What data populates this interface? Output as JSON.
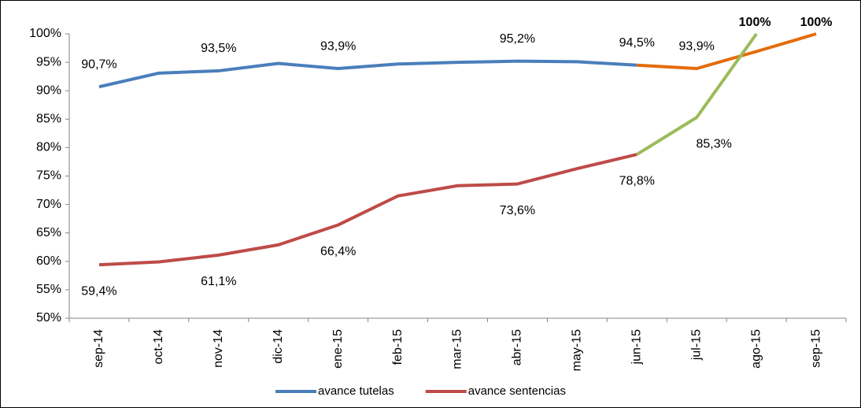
{
  "chart_data": {
    "type": "line",
    "categories": [
      "sep-14",
      "oct-14",
      "nov-14",
      "dic-14",
      "ene-15",
      "feb-15",
      "mar-15",
      "abr-15",
      "may-15",
      "jun-15",
      "jul-15",
      "ago-15",
      "sep-15"
    ],
    "series": [
      {
        "name": "avance tutelas",
        "color": "#4a7ebb",
        "values": [
          90.7,
          93.1,
          93.5,
          94.8,
          93.9,
          94.7,
          95.0,
          95.2,
          95.1,
          94.5,
          null,
          null,
          null
        ],
        "value_labels": [
          "90,7%",
          null,
          "93,5%",
          null,
          "93,9%",
          null,
          null,
          "95,2%",
          null,
          "94,5%",
          null,
          null,
          null
        ]
      },
      {
        "name": "avance sentencias",
        "color": "#be4b48",
        "values": [
          59.4,
          59.9,
          61.1,
          62.9,
          66.4,
          71.5,
          73.3,
          73.6,
          76.3,
          78.8,
          null,
          null,
          null
        ],
        "value_labels": [
          "59,4%",
          null,
          "61,1%",
          null,
          "66,4%",
          null,
          null,
          "73,6%",
          null,
          "78,8%",
          null,
          null,
          null
        ]
      },
      {
        "color": "#e46c0a",
        "values": [
          null,
          null,
          null,
          null,
          null,
          null,
          null,
          null,
          null,
          94.5,
          93.9,
          96.9,
          100
        ],
        "value_labels": [
          null,
          null,
          null,
          null,
          null,
          null,
          null,
          null,
          null,
          null,
          "93,9%",
          null,
          "100%"
        ]
      },
      {
        "color": "#9bbb59",
        "values": [
          null,
          null,
          null,
          null,
          null,
          null,
          null,
          null,
          null,
          78.8,
          85.3,
          100,
          null
        ],
        "value_labels": [
          null,
          null,
          null,
          null,
          null,
          null,
          null,
          null,
          null,
          null,
          "85,3%",
          "100%",
          null
        ]
      }
    ],
    "ylim": [
      50,
      100
    ],
    "yticks": [
      {
        "value": 50,
        "label": "50%"
      },
      {
        "value": 55,
        "label": "55%"
      },
      {
        "value": 60,
        "label": "60%"
      },
      {
        "value": 65,
        "label": "65%"
      },
      {
        "value": 70,
        "label": "70%"
      },
      {
        "value": 75,
        "label": "75%"
      },
      {
        "value": 80,
        "label": "80%"
      },
      {
        "value": 85,
        "label": "85%"
      },
      {
        "value": 90,
        "label": "90%"
      },
      {
        "value": 95,
        "label": "95%"
      },
      {
        "value": 100,
        "label": "100%"
      }
    ],
    "grid": false,
    "legend": "bottom"
  }
}
